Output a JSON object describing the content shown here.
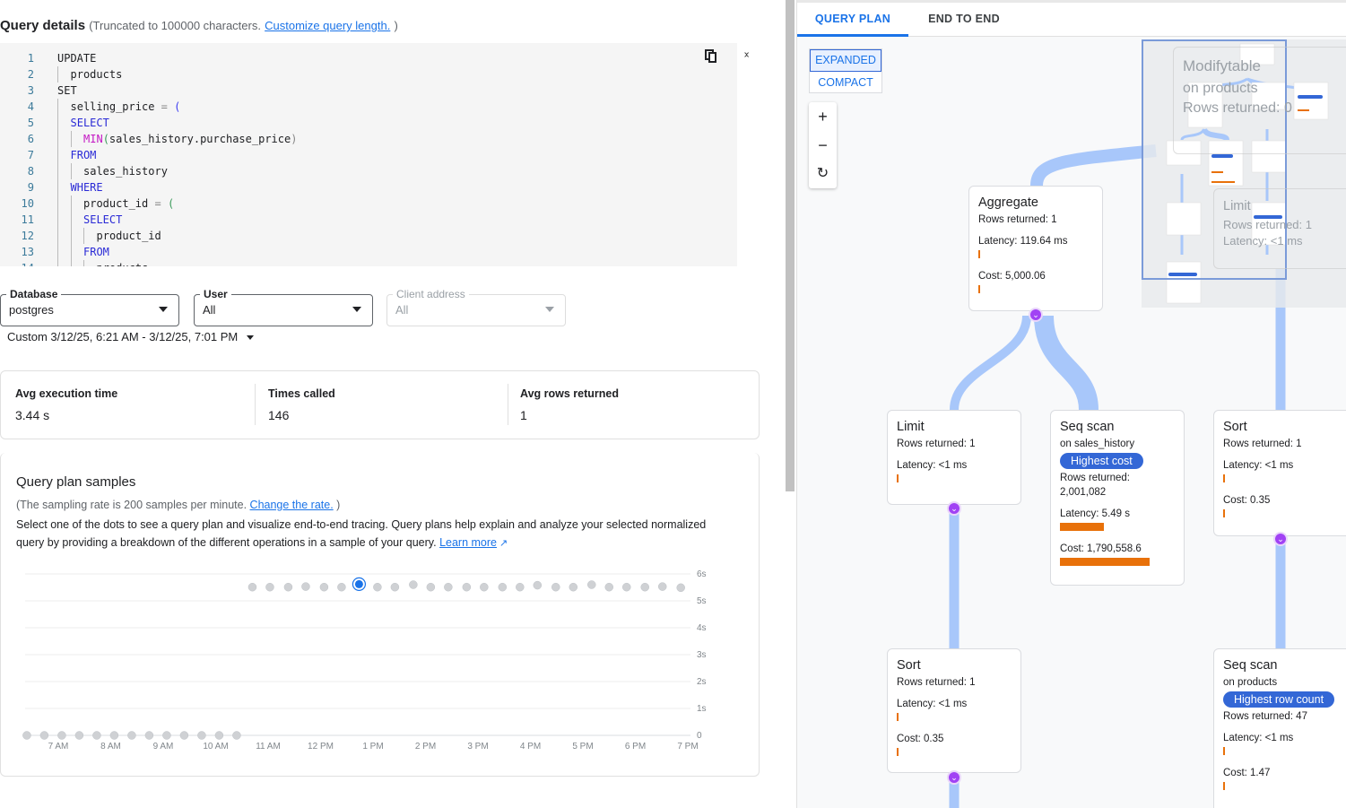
{
  "query_details": {
    "title": "Query details",
    "truncation_note": "(Truncated to 100000 characters.",
    "customize_link": "Customize query length.",
    "close_paren": ")",
    "copy_icon": "copy-icon",
    "collapse_icon": "collapse-icon",
    "code_lines": [
      {
        "n": "1",
        "indent": 0,
        "parts": [
          {
            "t": "UPDATE",
            "c": ""
          }
        ]
      },
      {
        "n": "2",
        "indent": 1,
        "parts": [
          {
            "t": "products",
            "c": ""
          }
        ]
      },
      {
        "n": "3",
        "indent": 0,
        "parts": [
          {
            "t": "SET",
            "c": ""
          }
        ]
      },
      {
        "n": "4",
        "indent": 1,
        "parts": [
          {
            "t": "selling_price ",
            "c": ""
          },
          {
            "t": "= ",
            "c": "op"
          },
          {
            "t": "(",
            "c": "pb"
          }
        ]
      },
      {
        "n": "5",
        "indent": 1,
        "parts": [
          {
            "t": "SELECT",
            "c": "kw"
          }
        ]
      },
      {
        "n": "6",
        "indent": 2,
        "parts": [
          {
            "t": "MIN",
            "c": "fn"
          },
          {
            "t": "(",
            "c": "pg"
          },
          {
            "t": "sales_history.purchase_price",
            "c": ""
          },
          {
            "t": ")",
            "c": "op"
          }
        ]
      },
      {
        "n": "7",
        "indent": 1,
        "parts": [
          {
            "t": "FROM",
            "c": "kw"
          }
        ]
      },
      {
        "n": "8",
        "indent": 2,
        "parts": [
          {
            "t": "sales_history",
            "c": ""
          }
        ]
      },
      {
        "n": "9",
        "indent": 1,
        "parts": [
          {
            "t": "WHERE",
            "c": "kw"
          }
        ]
      },
      {
        "n": "10",
        "indent": 2,
        "parts": [
          {
            "t": "product_id ",
            "c": ""
          },
          {
            "t": "= ",
            "c": "op"
          },
          {
            "t": "(",
            "c": "pg"
          }
        ]
      },
      {
        "n": "11",
        "indent": 2,
        "parts": [
          {
            "t": "SELECT",
            "c": "kw"
          }
        ]
      },
      {
        "n": "12",
        "indent": 3,
        "parts": [
          {
            "t": "product_id",
            "c": ""
          }
        ]
      },
      {
        "n": "13",
        "indent": 2,
        "parts": [
          {
            "t": "FROM",
            "c": "kw"
          }
        ]
      },
      {
        "n": "14",
        "indent": 3,
        "parts": [
          {
            "t": "products",
            "c": ""
          }
        ]
      }
    ]
  },
  "filters": {
    "database": {
      "label": "Database",
      "value": "postgres"
    },
    "user": {
      "label": "User",
      "value": "All"
    },
    "client_address": {
      "label": "Client address",
      "value": "All"
    },
    "date_range": "Custom 3/12/25, 6:21 AM - 3/12/25, 7:01 PM"
  },
  "stats": [
    {
      "label": "Avg execution time",
      "value": "3.44 s"
    },
    {
      "label": "Times called",
      "value": "146"
    },
    {
      "label": "Avg rows returned",
      "value": "1"
    }
  ],
  "samples": {
    "title": "Query plan samples",
    "rate_note": "(The sampling rate is 200 samples per minute.",
    "change_rate_link": "Change the rate.",
    "close_paren": ")",
    "description": "Select one of the dots to see a query plan and visualize end-to-end tracing. Query plans help explain and analyze your selected normalized query by providing a breakdown of the different operations in a sample of your query.",
    "learn_more": "Learn more"
  },
  "chart_data": {
    "type": "scatter",
    "x_ticks": [
      "7 AM",
      "8 AM",
      "9 AM",
      "10 AM",
      "11 AM",
      "12 PM",
      "1 PM",
      "2 PM",
      "3 PM",
      "4 PM",
      "5 PM",
      "6 PM",
      "7 PM"
    ],
    "y_ticks": [
      "0",
      "1s",
      "2s",
      "3s",
      "4s",
      "5s",
      "6s"
    ],
    "ylim": [
      0,
      6
    ],
    "xlim": [
      "06:24",
      "19:00"
    ],
    "grid": true,
    "selected_index": 19,
    "point_color": "#cfd1d4",
    "selected_color": "#1a73e8",
    "points": [
      {
        "x": "06:24",
        "y": 0
      },
      {
        "x": "06:44",
        "y": 0
      },
      {
        "x": "07:04",
        "y": 0
      },
      {
        "x": "07:24",
        "y": 0
      },
      {
        "x": "07:44",
        "y": 0
      },
      {
        "x": "08:04",
        "y": 0
      },
      {
        "x": "08:24",
        "y": 0
      },
      {
        "x": "08:44",
        "y": 0
      },
      {
        "x": "09:04",
        "y": 0
      },
      {
        "x": "09:24",
        "y": 0
      },
      {
        "x": "09:44",
        "y": 0
      },
      {
        "x": "10:04",
        "y": 0
      },
      {
        "x": "10:24",
        "y": 0
      },
      {
        "x": "10:42",
        "y": 5.51
      },
      {
        "x": "11:02",
        "y": 5.51
      },
      {
        "x": "11:23",
        "y": 5.51
      },
      {
        "x": "11:43",
        "y": 5.53
      },
      {
        "x": "12:04",
        "y": 5.51
      },
      {
        "x": "12:24",
        "y": 5.51
      },
      {
        "x": "12:44",
        "y": 5.62
      },
      {
        "x": "13:05",
        "y": 5.51
      },
      {
        "x": "13:25",
        "y": 5.51
      },
      {
        "x": "13:46",
        "y": 5.6
      },
      {
        "x": "14:06",
        "y": 5.51
      },
      {
        "x": "14:26",
        "y": 5.51
      },
      {
        "x": "14:47",
        "y": 5.51
      },
      {
        "x": "15:07",
        "y": 5.51
      },
      {
        "x": "15:28",
        "y": 5.51
      },
      {
        "x": "15:48",
        "y": 5.51
      },
      {
        "x": "16:08",
        "y": 5.58
      },
      {
        "x": "16:29",
        "y": 5.51
      },
      {
        "x": "16:49",
        "y": 5.51
      },
      {
        "x": "17:10",
        "y": 5.6
      },
      {
        "x": "17:30",
        "y": 5.51
      },
      {
        "x": "17:50",
        "y": 5.51
      },
      {
        "x": "18:11",
        "y": 5.51
      },
      {
        "x": "18:31",
        "y": 5.53
      },
      {
        "x": "18:52",
        "y": 5.49
      }
    ]
  },
  "plan": {
    "tabs": [
      {
        "label": "QUERY PLAN",
        "active": true
      },
      {
        "label": "END TO END",
        "active": false
      }
    ],
    "view_modes": [
      {
        "label": "EXPANDED",
        "active": true
      },
      {
        "label": "COMPACT",
        "active": false
      }
    ],
    "zoom_controls": {
      "zoom_in": "+",
      "zoom_out": "−",
      "reset": "↻"
    },
    "nodes": {
      "modifytable": {
        "title": "Modifytable",
        "sub": "on products",
        "rows": "Rows returned: 0"
      },
      "limit_top": {
        "title": "Limit",
        "rows": "Rows returned: 1",
        "latency": "Latency: <1 ms"
      },
      "aggregate": {
        "title": "Aggregate",
        "rows": "Rows returned: 1",
        "latency": "Latency: 119.64 ms",
        "cost": "Cost: 5,000.06"
      },
      "limit": {
        "title": "Limit",
        "rows": "Rows returned: 1",
        "latency": "Latency: <1 ms"
      },
      "seqscan_sales": {
        "title": "Seq scan",
        "sub": "on sales_history",
        "badge": "Highest cost",
        "rows_label": "Rows returned:",
        "rows_value": "2,001,082",
        "latency": "Latency: 5.49 s",
        "cost": "Cost: 1,790,558.6"
      },
      "sort_right": {
        "title": "Sort",
        "rows": "Rows returned: 1",
        "latency": "Latency: <1 ms",
        "cost": "Cost: 0.35"
      },
      "sort_left": {
        "title": "Sort",
        "rows": "Rows returned: 1",
        "latency": "Latency: <1 ms",
        "cost": "Cost: 0.35"
      },
      "seqscan_products": {
        "title": "Seq scan",
        "sub": "on products",
        "badge": "Highest row count",
        "rows": "Rows returned: 47",
        "latency": "Latency: <1 ms",
        "cost": "Cost: 1.47"
      }
    },
    "colors": {
      "edge": "#a8c7fa",
      "bar": "#e8710a",
      "badge": "#3367d6",
      "expander": "#a142f4",
      "accent": "#1a73e8"
    }
  }
}
